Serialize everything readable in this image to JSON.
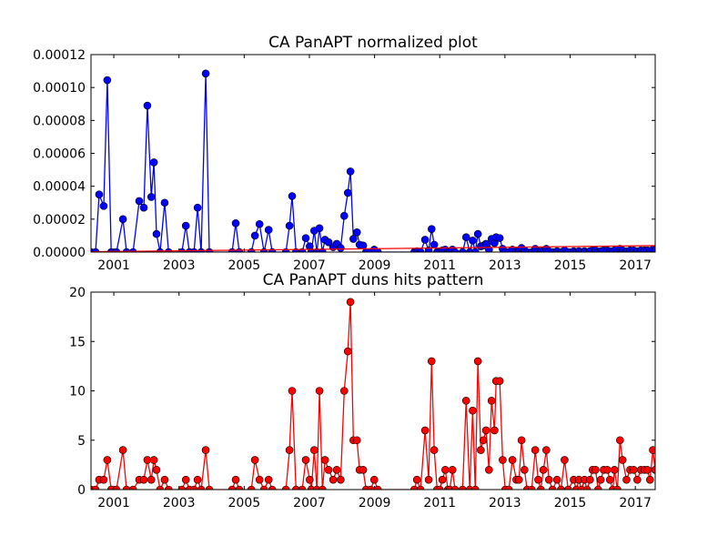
{
  "chart_data": [
    {
      "type": "line",
      "title": "CA PanAPT normalized plot",
      "x": [
        2000.3,
        2000.44,
        2000.55,
        2000.69,
        2000.8,
        2000.92,
        2001.08,
        2001.28,
        2001.39,
        2001.59,
        2001.78,
        2001.92,
        2002.03,
        2002.15,
        2002.23,
        2002.31,
        2002.42,
        2002.56,
        2002.68,
        2003.09,
        2003.21,
        2003.32,
        2003.46,
        2003.57,
        2003.68,
        2003.82,
        2003.93,
        2004.63,
        2004.74,
        2004.85,
        2005.22,
        2005.33,
        2005.47,
        2005.61,
        2005.75,
        2005.86,
        2006.28,
        2006.39,
        2006.47,
        2006.59,
        2006.78,
        2006.89,
        2007.01,
        2007.06,
        2007.15,
        2007.23,
        2007.31,
        2007.4,
        2007.48,
        2007.59,
        2007.73,
        2007.84,
        2007.96,
        2008.07,
        2008.18,
        2008.26,
        2008.35,
        2008.46,
        2008.54,
        2008.65,
        2008.74,
        2008.88,
        2008.99,
        2009.1,
        2010.22,
        2010.3,
        2010.41,
        2010.55,
        2010.66,
        2010.75,
        2010.83,
        2010.92,
        2011.0,
        2011.08,
        2011.17,
        2011.25,
        2011.31,
        2011.39,
        2011.47,
        2011.7,
        2011.81,
        2011.92,
        2012.01,
        2012.09,
        2012.17,
        2012.26,
        2012.34,
        2012.42,
        2012.51,
        2012.59,
        2012.68,
        2012.73,
        2012.84,
        2012.93,
        2013.01,
        2013.12,
        2013.23,
        2013.35,
        2013.43,
        2013.51,
        2013.6,
        2013.68,
        2013.82,
        2013.93,
        2014.02,
        2014.1,
        2014.18,
        2014.27,
        2014.35,
        2014.46,
        2014.6,
        2014.72,
        2014.83,
        2014.94,
        2015.11,
        2015.19,
        2015.27,
        2015.35,
        2015.44,
        2015.52,
        2015.61,
        2015.69,
        2015.78,
        2015.86,
        2015.94,
        2016.03,
        2016.14,
        2016.22,
        2016.31,
        2016.36,
        2016.45,
        2016.53,
        2016.61,
        2016.73,
        2016.84,
        2016.95,
        2017.06,
        2017.17,
        2017.28,
        2017.37,
        2017.45,
        2017.54,
        2017.61
      ],
      "series": [
        {
          "color": "#0000ff",
          "marker": true,
          "values": [
            0,
            0,
            3.5e-05,
            2.8e-05,
            0.0001045,
            0,
            0,
            2e-05,
            0,
            0,
            3.1e-05,
            2.7e-05,
            8.9e-05,
            3.35e-05,
            5.45e-05,
            1.1e-05,
            0,
            3e-05,
            0,
            0,
            1.6e-05,
            0,
            0,
            2.7e-05,
            0,
            0.0001085,
            0,
            0,
            1.75e-05,
            0,
            0,
            1e-05,
            1.7e-05,
            0,
            1.35e-05,
            0,
            0,
            1.6e-05,
            3.4e-05,
            0,
            0,
            8.5e-06,
            3.5e-06,
            0,
            1.3e-05,
            0,
            1.45e-05,
            0,
            7.5e-06,
            6e-06,
            3e-06,
            5e-06,
            2.5e-06,
            2.2e-05,
            3.6e-05,
            4.9e-05,
            8e-06,
            1.2e-05,
            4.5e-06,
            4e-06,
            0,
            0,
            1.5e-06,
            0,
            0,
            5e-07,
            0,
            7.5e-06,
            1e-06,
            1.4e-05,
            4.5e-06,
            0,
            0,
            1e-06,
            1.5e-06,
            0,
            0,
            1.5e-06,
            0,
            0,
            9e-06,
            0,
            7e-06,
            0,
            1.1e-05,
            3.5e-06,
            4e-06,
            5e-06,
            1.5e-06,
            8e-06,
            5.5e-06,
            9e-06,
            8.5e-06,
            2e-06,
            0,
            0,
            1.5e-06,
            5e-07,
            5e-07,
            2.5e-06,
            1e-06,
            0,
            0,
            2e-06,
            5e-07,
            0,
            1e-06,
            2e-06,
            5e-07,
            0,
            5e-07,
            0,
            1e-06,
            0,
            5e-07,
            0,
            5e-07,
            0,
            5e-07,
            0,
            5e-07,
            1e-06,
            1e-06,
            0,
            5e-07,
            1e-06,
            1e-06,
            5e-07,
            0,
            1e-06,
            0,
            2e-06,
            1e-06,
            5e-07,
            1e-06,
            1e-06,
            5e-07,
            1e-06,
            1e-06,
            1e-06,
            5e-07,
            1.5e-06,
            1e-06
          ]
        },
        {
          "color": "#ff0000",
          "marker": false,
          "x": [
            2000.3,
            2017.61
          ],
          "values": [
            2e-07,
            3.9e-06
          ]
        }
      ],
      "xlim": [
        2000.3,
        2017.61
      ],
      "xticks": [
        2001,
        2003,
        2005,
        2007,
        2009,
        2011,
        2013,
        2015,
        2017
      ],
      "ylim": [
        0,
        0.00012
      ],
      "yticks": [
        {
          "value": 0,
          "label": "0.00000"
        },
        {
          "value": 2e-05,
          "label": "0.00002"
        },
        {
          "value": 4e-05,
          "label": "0.00004"
        },
        {
          "value": 6e-05,
          "label": "0.00006"
        },
        {
          "value": 8e-05,
          "label": "0.00008"
        },
        {
          "value": 0.0001,
          "label": "0.00010"
        },
        {
          "value": 0.00012,
          "label": "0.00012"
        }
      ]
    },
    {
      "type": "line",
      "title": "CA PanAPT duns hits pattern",
      "x": [
        2000.3,
        2000.44,
        2000.55,
        2000.69,
        2000.8,
        2000.92,
        2001.08,
        2001.28,
        2001.39,
        2001.59,
        2001.78,
        2001.92,
        2002.03,
        2002.15,
        2002.23,
        2002.31,
        2002.42,
        2002.56,
        2002.68,
        2003.09,
        2003.21,
        2003.32,
        2003.46,
        2003.57,
        2003.68,
        2003.82,
        2003.93,
        2004.63,
        2004.74,
        2004.85,
        2005.22,
        2005.33,
        2005.47,
        2005.61,
        2005.75,
        2005.86,
        2006.28,
        2006.39,
        2006.47,
        2006.59,
        2006.78,
        2006.89,
        2007.01,
        2007.06,
        2007.15,
        2007.23,
        2007.31,
        2007.4,
        2007.48,
        2007.59,
        2007.73,
        2007.84,
        2007.96,
        2008.07,
        2008.18,
        2008.26,
        2008.35,
        2008.46,
        2008.54,
        2008.65,
        2008.74,
        2008.88,
        2008.99,
        2009.1,
        2010.22,
        2010.3,
        2010.41,
        2010.55,
        2010.66,
        2010.75,
        2010.83,
        2010.92,
        2011.0,
        2011.08,
        2011.17,
        2011.25,
        2011.31,
        2011.39,
        2011.47,
        2011.7,
        2011.81,
        2011.92,
        2012.01,
        2012.09,
        2012.17,
        2012.26,
        2012.34,
        2012.42,
        2012.51,
        2012.59,
        2012.68,
        2012.73,
        2012.84,
        2012.93,
        2013.01,
        2013.12,
        2013.23,
        2013.35,
        2013.43,
        2013.51,
        2013.6,
        2013.68,
        2013.82,
        2013.93,
        2014.02,
        2014.1,
        2014.18,
        2014.27,
        2014.35,
        2014.46,
        2014.6,
        2014.72,
        2014.83,
        2014.94,
        2015.11,
        2015.19,
        2015.27,
        2015.35,
        2015.44,
        2015.52,
        2015.61,
        2015.69,
        2015.78,
        2015.86,
        2015.94,
        2016.03,
        2016.14,
        2016.22,
        2016.31,
        2016.36,
        2016.45,
        2016.53,
        2016.61,
        2016.73,
        2016.84,
        2016.95,
        2017.06,
        2017.17,
        2017.28,
        2017.37,
        2017.45,
        2017.54,
        2017.61
      ],
      "series": [
        {
          "color": "#ff0000",
          "marker": true,
          "values": [
            0,
            0,
            1,
            1,
            3,
            0,
            0,
            4,
            0,
            0,
            1,
            1,
            3,
            1,
            3,
            2,
            0,
            1,
            0,
            0,
            1,
            0,
            0,
            1,
            0,
            4,
            0,
            0,
            1,
            0,
            0,
            3,
            1,
            0,
            1,
            0,
            0,
            4,
            10,
            0,
            0,
            3,
            1,
            0,
            4,
            0,
            10,
            0,
            3,
            2,
            1,
            2,
            1,
            10,
            14,
            19,
            5,
            5,
            2,
            2,
            0,
            0,
            1,
            0,
            0,
            1,
            0,
            6,
            1,
            13,
            4,
            0,
            0,
            1,
            2,
            0,
            0,
            2,
            0,
            0,
            9,
            0,
            8,
            0,
            13,
            4,
            5,
            6,
            2,
            9,
            6,
            11,
            11,
            3,
            0,
            0,
            3,
            1,
            1,
            5,
            2,
            0,
            0,
            4,
            1,
            0,
            2,
            4,
            1,
            0,
            1,
            0,
            3,
            0,
            1,
            0,
            1,
            0,
            1,
            0,
            1,
            2,
            2,
            0,
            1,
            2,
            2,
            1,
            0,
            2,
            0,
            5,
            3,
            1,
            2,
            2,
            1,
            2,
            2,
            2,
            1,
            4,
            2
          ]
        }
      ],
      "xlim": [
        2000.3,
        2017.61
      ],
      "xticks": [
        2001,
        2003,
        2005,
        2007,
        2009,
        2011,
        2013,
        2015,
        2017
      ],
      "ylim": [
        0,
        20
      ],
      "yticks": [
        0,
        5,
        10,
        15,
        20
      ]
    }
  ]
}
